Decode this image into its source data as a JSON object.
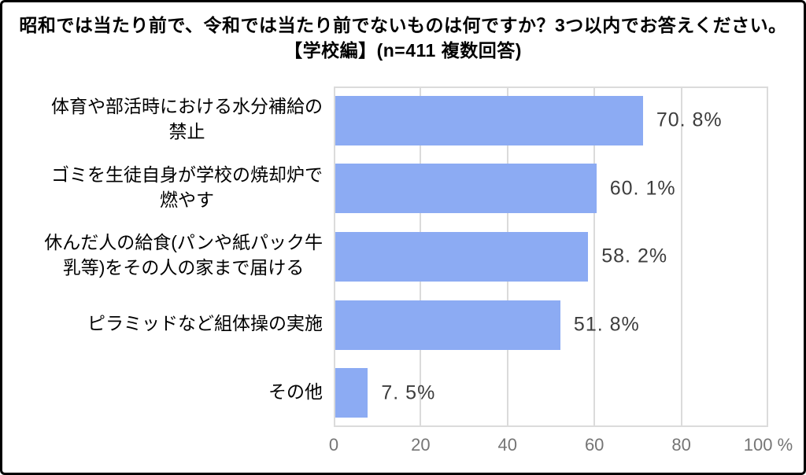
{
  "title": {
    "line1": "昭和では当たり前で、令和では当たり前でないものは何ですか？3つ以内でお答えください。",
    "line2": "【学校編】(n=411 複数回答)"
  },
  "chart_data": {
    "type": "bar",
    "orientation": "horizontal",
    "title": "昭和では当たり前で、令和では当たり前でないものは何ですか？3つ以内でお答えください。",
    "subtitle": "【学校編】(n=411 複数回答)",
    "sample_size": "n=411",
    "answer_type": "複数回答",
    "categories": [
      "体育や部活時における水分補給の禁止",
      "ゴミを生徒自身が学校の焼却炉で燃やす",
      "休んだ人の給食(パンや紙パック牛乳等)をその人の家まで届ける",
      "ピラミッドなど組体操の実施",
      "その他"
    ],
    "category_display": [
      "体育や部活時における水分補給の\n禁止",
      "ゴミを生徒自身が学校の焼却炉で\n燃やす",
      "休んだ人の給食(パンや紙パック牛\n乳等)をその人の家まで届ける",
      "ピラミッドなど組体操の実施",
      "その他"
    ],
    "values": [
      70.8,
      60.1,
      58.2,
      51.8,
      7.5
    ],
    "value_labels": [
      "70. 8%",
      "60. 1%",
      "58. 2%",
      "51. 8%",
      "7. 5%"
    ],
    "xlim": [
      0,
      100
    ],
    "x_ticks": [
      0,
      20,
      40,
      60,
      80,
      100
    ],
    "x_tick_labels": [
      "0",
      "20",
      "40",
      "60",
      "80",
      "100 %"
    ],
    "grid": "vertical-only",
    "legend": "none",
    "bar_color": "#8cabf3",
    "grid_color": "#dbdbdb",
    "value_label_color": "#3d3d3d",
    "tick_label_color": "#757575",
    "frame_border_color": "#000000"
  }
}
